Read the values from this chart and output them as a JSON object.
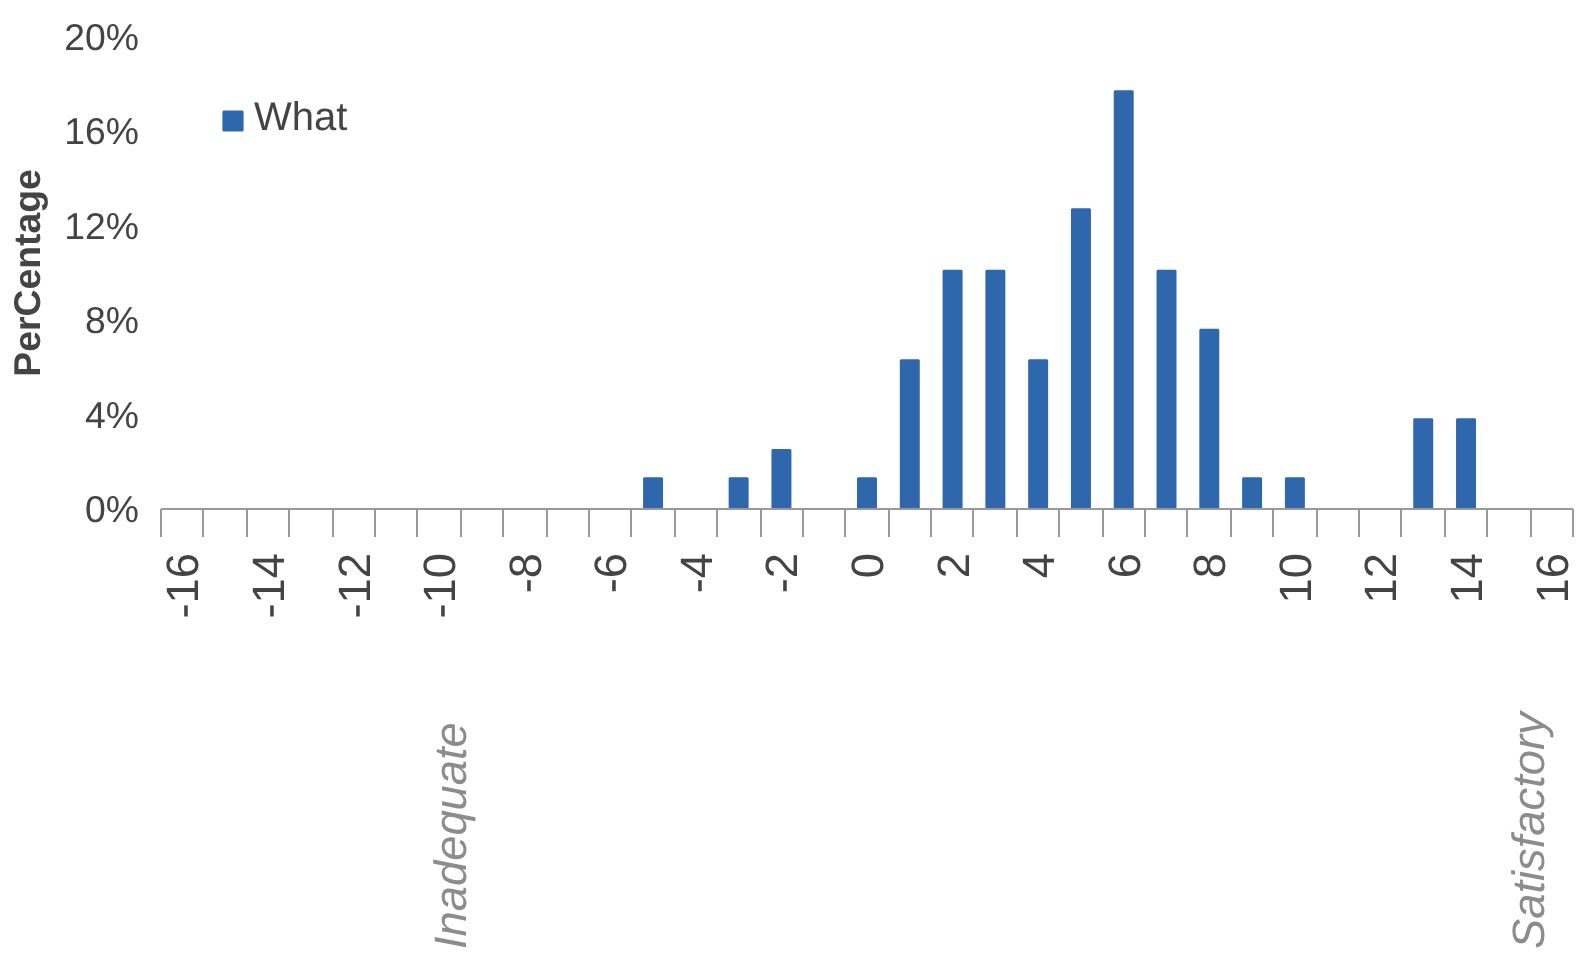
{
  "chart_data": {
    "type": "bar",
    "ylabel": "PerCentage",
    "categories": [
      "-16",
      null,
      "-14",
      null,
      "-12",
      null,
      "-10",
      null,
      "-8",
      null,
      "-6",
      null,
      "-4",
      null,
      "-2",
      null,
      "0",
      null,
      "2",
      null,
      "4",
      null,
      "6",
      null,
      "8",
      null,
      "10",
      null,
      "12",
      null,
      "14",
      null,
      "16"
    ],
    "series": [
      {
        "name": "What",
        "color": "#2f67ad",
        "values": [
          0,
          0,
          0,
          0,
          0,
          0,
          0,
          0,
          0,
          0,
          0,
          1.3,
          0,
          1.3,
          2.5,
          0,
          1.3,
          6.3,
          10.1,
          10.1,
          6.3,
          12.7,
          17.7,
          10.1,
          7.6,
          1.3,
          1.3,
          0,
          0,
          3.8,
          3.8,
          0,
          0
        ]
      }
    ],
    "ylim": [
      0,
      20
    ],
    "yticks": [
      {
        "value": 0,
        "label": "0%"
      },
      {
        "value": 4,
        "label": "4%"
      },
      {
        "value": 8,
        "label": "8%"
      },
      {
        "value": 12,
        "label": "12%"
      },
      {
        "value": 16,
        "label": "16%"
      },
      {
        "value": 20,
        "label": "20%"
      }
    ],
    "grid": false,
    "legend": "top left",
    "annotations": [
      "Inadequate",
      "Satisfactory"
    ]
  }
}
